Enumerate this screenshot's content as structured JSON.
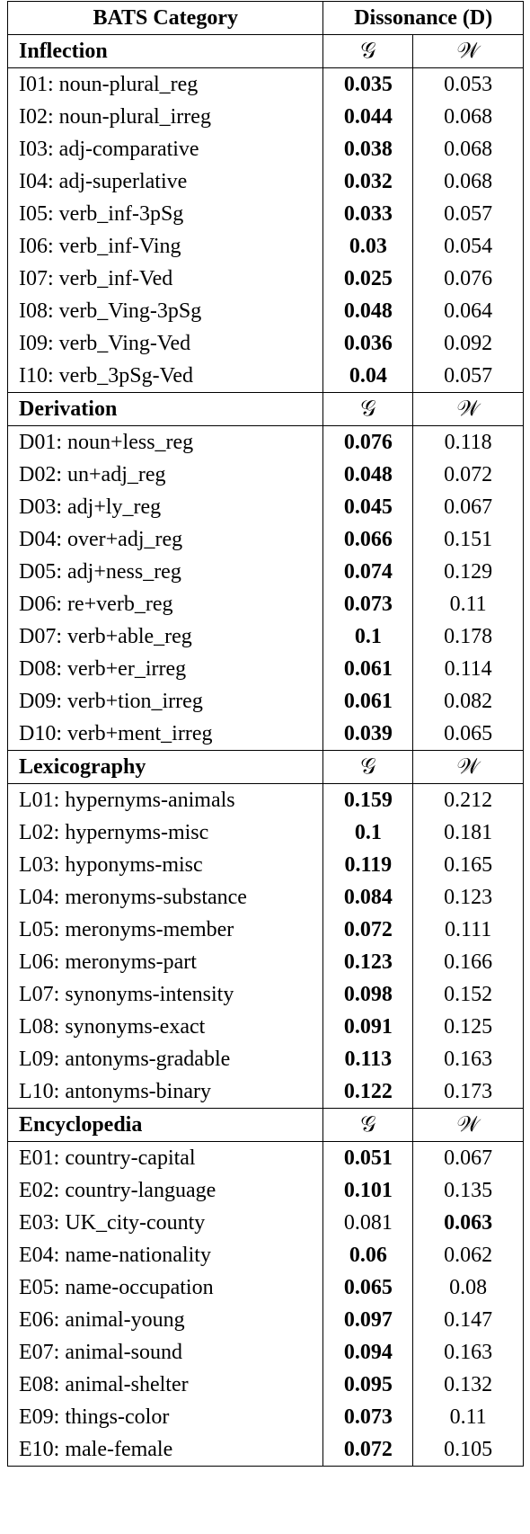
{
  "header": {
    "category": "BATS Category",
    "dissonance": "Dissonance (D)"
  },
  "groups": [
    {
      "name": "Inflection",
      "g_label": "𝒢",
      "w_label": "𝒲",
      "rows": [
        {
          "label": "I01: noun-plural_reg",
          "g": 0.035,
          "w": 0.053,
          "bold": "g"
        },
        {
          "label": "I02: noun-plural_irreg",
          "g": 0.044,
          "w": 0.068,
          "bold": "g"
        },
        {
          "label": "I03: adj-comparative",
          "g": 0.038,
          "w": 0.068,
          "bold": "g"
        },
        {
          "label": "I04: adj-superlative",
          "g": 0.032,
          "w": 0.068,
          "bold": "g"
        },
        {
          "label": "I05: verb_inf-3pSg",
          "g": 0.033,
          "w": 0.057,
          "bold": "g"
        },
        {
          "label": "I06: verb_inf-Ving",
          "g": 0.03,
          "w": 0.054,
          "bold": "g"
        },
        {
          "label": "I07: verb_inf-Ved",
          "g": 0.025,
          "w": 0.076,
          "bold": "g"
        },
        {
          "label": "I08: verb_Ving-3pSg",
          "g": 0.048,
          "w": 0.064,
          "bold": "g"
        },
        {
          "label": "I09: verb_Ving-Ved",
          "g": 0.036,
          "w": 0.092,
          "bold": "g"
        },
        {
          "label": "I10: verb_3pSg-Ved",
          "g": 0.04,
          "w": 0.057,
          "bold": "g"
        }
      ]
    },
    {
      "name": "Derivation",
      "g_label": "𝒢",
      "w_label": "𝒲",
      "rows": [
        {
          "label": "D01: noun+less_reg",
          "g": 0.076,
          "w": 0.118,
          "bold": "g"
        },
        {
          "label": "D02: un+adj_reg",
          "g": 0.048,
          "w": 0.072,
          "bold": "g"
        },
        {
          "label": "D03: adj+ly_reg",
          "g": 0.045,
          "w": 0.067,
          "bold": "g"
        },
        {
          "label": "D04: over+adj_reg",
          "g": 0.066,
          "w": 0.151,
          "bold": "g"
        },
        {
          "label": "D05: adj+ness_reg",
          "g": 0.074,
          "w": 0.129,
          "bold": "g"
        },
        {
          "label": "D06: re+verb_reg",
          "g": 0.073,
          "w": 0.11,
          "bold": "g"
        },
        {
          "label": "D07: verb+able_reg",
          "g": 0.1,
          "w": 0.178,
          "bold": "g"
        },
        {
          "label": "D08: verb+er_irreg",
          "g": 0.061,
          "w": 0.114,
          "bold": "g"
        },
        {
          "label": "D09: verb+tion_irreg",
          "g": 0.061,
          "w": 0.082,
          "bold": "g"
        },
        {
          "label": "D10: verb+ment_irreg",
          "g": 0.039,
          "w": 0.065,
          "bold": "g"
        }
      ]
    },
    {
      "name": "Lexicography",
      "g_label": "𝒢",
      "w_label": "𝒲",
      "rows": [
        {
          "label": "L01: hypernyms-animals",
          "g": 0.159,
          "w": 0.212,
          "bold": "g"
        },
        {
          "label": "L02: hypernyms-misc",
          "g": 0.1,
          "w": 0.181,
          "bold": "g"
        },
        {
          "label": "L03: hyponyms-misc",
          "g": 0.119,
          "w": 0.165,
          "bold": "g"
        },
        {
          "label": "L04: meronyms-substance",
          "g": 0.084,
          "w": 0.123,
          "bold": "g"
        },
        {
          "label": "L05: meronyms-member",
          "g": 0.072,
          "w": 0.111,
          "bold": "g"
        },
        {
          "label": "L06: meronyms-part",
          "g": 0.123,
          "w": 0.166,
          "bold": "g"
        },
        {
          "label": "L07: synonyms-intensity",
          "g": 0.098,
          "w": 0.152,
          "bold": "g"
        },
        {
          "label": "L08: synonyms-exact",
          "g": 0.091,
          "w": 0.125,
          "bold": "g"
        },
        {
          "label": "L09: antonyms-gradable",
          "g": 0.113,
          "w": 0.163,
          "bold": "g"
        },
        {
          "label": "L10: antonyms-binary",
          "g": 0.122,
          "w": 0.173,
          "bold": "g"
        }
      ]
    },
    {
      "name": "Encyclopedia",
      "g_label": "𝒢",
      "w_label": "𝒲",
      "rows": [
        {
          "label": "E01: country-capital",
          "g": 0.051,
          "w": 0.067,
          "bold": "g"
        },
        {
          "label": "E02: country-language",
          "g": 0.101,
          "w": 0.135,
          "bold": "g"
        },
        {
          "label": "E03: UK_city-county",
          "g": 0.081,
          "w": 0.063,
          "bold": "w"
        },
        {
          "label": "E04: name-nationality",
          "g": 0.06,
          "w": 0.062,
          "bold": "g"
        },
        {
          "label": "E05: name-occupation",
          "g": 0.065,
          "w": 0.08,
          "bold": "g"
        },
        {
          "label": "E06: animal-young",
          "g": 0.097,
          "w": 0.147,
          "bold": "g"
        },
        {
          "label": "E07: animal-sound",
          "g": 0.094,
          "w": 0.163,
          "bold": "g"
        },
        {
          "label": "E08: animal-shelter",
          "g": 0.095,
          "w": 0.132,
          "bold": "g"
        },
        {
          "label": "E09: things-color",
          "g": 0.073,
          "w": 0.11,
          "bold": "g"
        },
        {
          "label": "E10: male-female",
          "g": 0.072,
          "w": 0.105,
          "bold": "g"
        }
      ]
    }
  ]
}
